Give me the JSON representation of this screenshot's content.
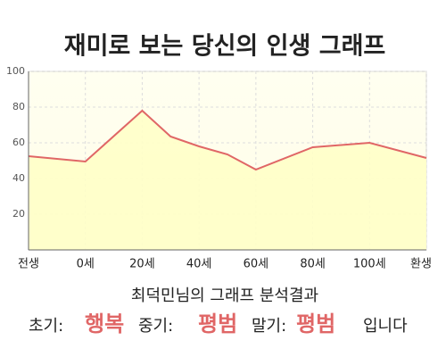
{
  "chart_data": {
    "type": "area",
    "title": "재미로 보는 당신의 인생 그래프",
    "x": [
      -20,
      0,
      20,
      30,
      40,
      50,
      60,
      80,
      100,
      120
    ],
    "values": [
      52.5,
      49.5,
      78,
      63.5,
      58,
      53.5,
      45,
      57.5,
      60,
      51.5
    ],
    "xlim": [
      -20,
      120
    ],
    "xticks": [
      {
        "value": -20,
        "label": "전생"
      },
      {
        "value": 0,
        "label": "0세"
      },
      {
        "value": 20,
        "label": "20세"
      },
      {
        "value": 40,
        "label": "40세"
      },
      {
        "value": 60,
        "label": "60세"
      },
      {
        "value": 80,
        "label": "80세"
      },
      {
        "value": 100,
        "label": "100세"
      },
      {
        "value": 120,
        "label": "환생"
      }
    ],
    "ylim": [
      0,
      100
    ],
    "yticks": [
      20,
      40,
      60,
      80,
      100
    ],
    "grid": true,
    "color": "#e06666",
    "fill": "#ffffc8",
    "caption": "최덕민님의 그래프 분석결과",
    "summary": [
      {
        "label": "초기:",
        "value": "행복"
      },
      {
        "label": "중기:",
        "value": "평범"
      },
      {
        "label": "말기:",
        "value": "평범"
      }
    ],
    "suffix": "입니다"
  }
}
